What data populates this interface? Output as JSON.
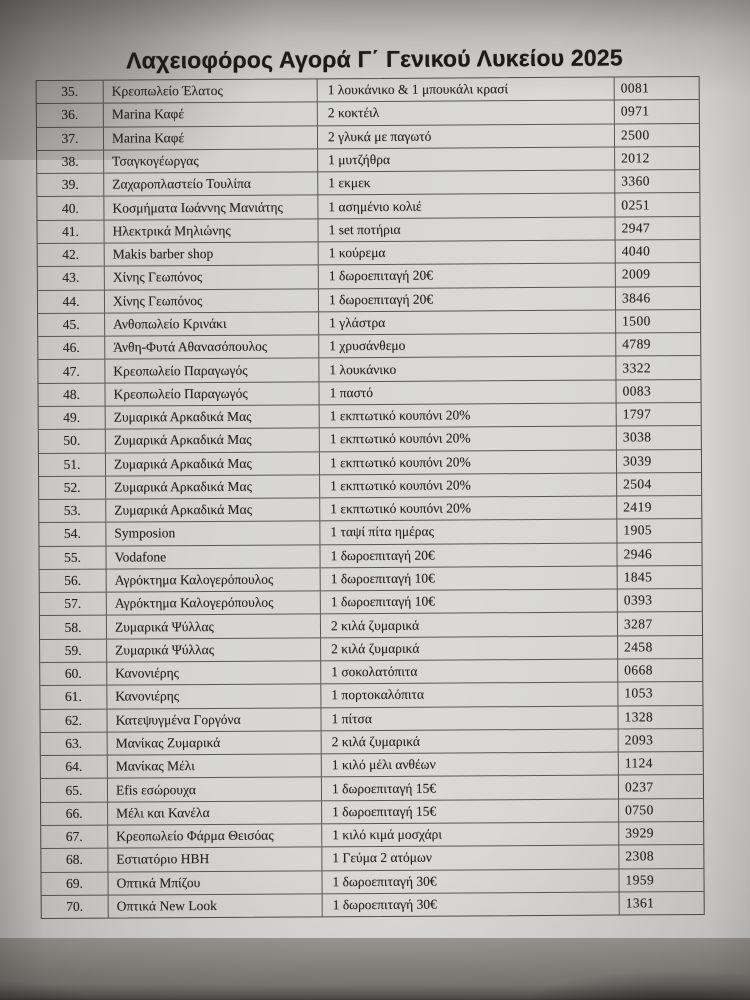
{
  "page": {
    "title": "Λαχειοφόρος Αγορά Γ΄ Γενικού Λυκείου 2025"
  },
  "table": {
    "rows": [
      {
        "no": "35.",
        "name": "Κρεοπωλείο Έλατος",
        "prize": "1 λουκάνικο & 1 μπουκάλι κρασί",
        "code": "0081"
      },
      {
        "no": "36.",
        "name": "Marina Καφέ",
        "prize": "2 κοκτέιλ",
        "code": "0971"
      },
      {
        "no": "37.",
        "name": "Marina Καφέ",
        "prize": "2 γλυκά με παγωτό",
        "code": "2500"
      },
      {
        "no": "38.",
        "name": "Τσαγκογέωργας",
        "prize": "1 μυτζήθρα",
        "code": "2012"
      },
      {
        "no": "39.",
        "name": "Ζαχαροπλαστείο Τουλίπα",
        "prize": "1 εκμεκ",
        "code": "3360"
      },
      {
        "no": "40.",
        "name": "Κοσμήματα Ιωάννης Μανιάτης",
        "prize": "1 ασημένιο κολιέ",
        "code": "0251"
      },
      {
        "no": "41.",
        "name": "Ηλεκτρικά Μηλιώνης",
        "prize": "1 set ποτήρια",
        "code": "2947"
      },
      {
        "no": "42.",
        "name": "Makis barber shop",
        "prize": "1 κούρεμα",
        "code": "4040"
      },
      {
        "no": "43.",
        "name": "Χίνης Γεωπόνος",
        "prize": "1 δωροεπιταγή 20€",
        "code": "2009"
      },
      {
        "no": "44.",
        "name": "Χίνης Γεωπόνος",
        "prize": "1 δωροεπιταγή 20€",
        "code": "3846"
      },
      {
        "no": "45.",
        "name": "Ανθοπωλείο Κρινάκι",
        "prize": "1 γλάστρα",
        "code": "1500"
      },
      {
        "no": "46.",
        "name": "Άνθη-Φυτά Αθανασόπουλος",
        "prize": "1 χρυσάνθεμο",
        "code": "4789"
      },
      {
        "no": "47.",
        "name": "Κρεοπωλείο Παραγωγός",
        "prize": "1 λουκάνικο",
        "code": "3322"
      },
      {
        "no": "48.",
        "name": "Κρεοπωλείο Παραγωγός",
        "prize": "1 παστό",
        "code": "0083"
      },
      {
        "no": "49.",
        "name": "Ζυμαρικά Αρκαδικά Μας",
        "prize": "1 εκπτωτικό κουπόνι 20%",
        "code": "1797"
      },
      {
        "no": "50.",
        "name": "Ζυμαρικά Αρκαδικά Μας",
        "prize": "1 εκπτωτικό κουπόνι 20%",
        "code": "3038"
      },
      {
        "no": "51.",
        "name": "Ζυμαρικά Αρκαδικά Μας",
        "prize": "1 εκπτωτικό κουπόνι 20%",
        "code": "3039"
      },
      {
        "no": "52.",
        "name": "Ζυμαρικά Αρκαδικά Μας",
        "prize": "1 εκπτωτικό κουπόνι 20%",
        "code": "2504"
      },
      {
        "no": "53.",
        "name": "Ζυμαρικά Αρκαδικά Μας",
        "prize": "1 εκπτωτικό κουπόνι 20%",
        "code": "2419"
      },
      {
        "no": "54.",
        "name": "Symposion",
        "prize": "1 ταψί πίτα ημέρας",
        "code": "1905"
      },
      {
        "no": "55.",
        "name": "Vodafone",
        "prize": "1 δωροεπιταγή 20€",
        "code": "2946"
      },
      {
        "no": "56.",
        "name": "Αγρόκτημα Καλογερόπουλος",
        "prize": "1 δωροεπιταγή 10€",
        "code": "1845"
      },
      {
        "no": "57.",
        "name": "Αγρόκτημα Καλογερόπουλος",
        "prize": "1 δωροεπιταγή 10€",
        "code": "0393"
      },
      {
        "no": "58.",
        "name": "Ζυμαρικά Ψύλλας",
        "prize": "2 κιλά ζυμαρικά",
        "code": "3287"
      },
      {
        "no": "59.",
        "name": "Ζυμαρικά Ψύλλας",
        "prize": "2 κιλά ζυμαρικά",
        "code": "2458"
      },
      {
        "no": "60.",
        "name": "Κανονιέρης",
        "prize": "1 σοκολατόπιτα",
        "code": "0668"
      },
      {
        "no": "61.",
        "name": "Κανονιέρης",
        "prize": "1 πορτοκαλόπιτα",
        "code": "1053"
      },
      {
        "no": "62.",
        "name": "Κατεψυγμένα Γοργόνα",
        "prize": "1 πίτσα",
        "code": "1328"
      },
      {
        "no": "63.",
        "name": "Μανίκας Ζυμαρικά",
        "prize": "2 κιλά ζυμαρικά",
        "code": "2093"
      },
      {
        "no": "64.",
        "name": "Μανίκας Μέλι",
        "prize": "1 κιλό μέλι ανθέων",
        "code": "1124"
      },
      {
        "no": "65.",
        "name": "Efis εσώρουχα",
        "prize": "1 δωροεπιταγή 15€",
        "code": "0237"
      },
      {
        "no": "66.",
        "name": "Μέλι και Κανέλα",
        "prize": "1 δωροεπιταγή 15€",
        "code": "0750"
      },
      {
        "no": "67.",
        "name": "Κρεοπωλείο Φάρμα Θεισόας",
        "prize": "1 κιλό κιμά μοσχάρι",
        "code": "3929"
      },
      {
        "no": "68.",
        "name": "Εστιατόριο ΗΒΗ",
        "prize": "1 Γεύμα 2 ατόμων",
        "code": "2308"
      },
      {
        "no": "69.",
        "name": "Οπτικά Μπίζου",
        "prize": "1 δωροεπιταγή 30€",
        "code": "1959"
      },
      {
        "no": "70.",
        "name": "Οπτικά New Look",
        "prize": "1 δωροεπιταγή 30€",
        "code": "1361"
      }
    ]
  }
}
